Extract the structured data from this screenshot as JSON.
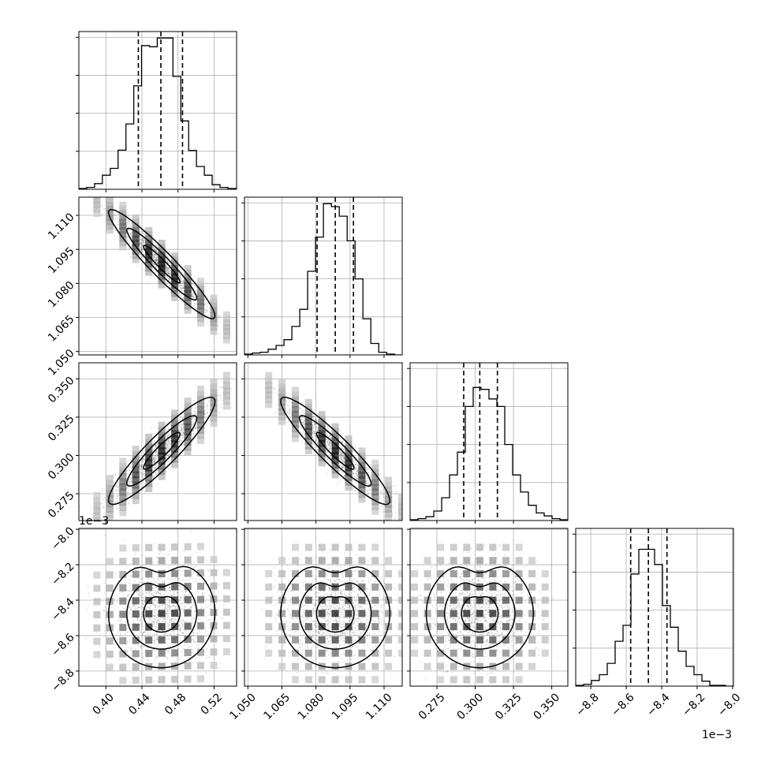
{
  "chart_data": {
    "type": "corner",
    "parameters": [
      {
        "range": [
          0.37,
          0.545
        ],
        "ticks": [
          0.4,
          0.44,
          0.48,
          0.52
        ],
        "tick_labels": [
          "0.40",
          "0.44",
          "0.48",
          "0.52"
        ],
        "quantiles": [
          0.436,
          0.461,
          0.485
        ],
        "hist_edges_start": 0.37,
        "hist_bin": 0.0087,
        "hist_counts": [
          2,
          5,
          15,
          37,
          55,
          103,
          172,
          272,
          378,
          375,
          398,
          398,
          297,
          180,
          102,
          60,
          37,
          12,
          5,
          2
        ]
      },
      {
        "range": [
          1.0485,
          1.118
        ],
        "ticks": [
          1.05,
          1.065,
          1.08,
          1.095,
          1.11
        ],
        "tick_labels": [
          "1.050",
          "1.065",
          "1.080",
          "1.095",
          "1.110"
        ],
        "quantiles": [
          1.0805,
          1.0885,
          1.0965
        ],
        "hist_edges_start": 1.0485,
        "hist_bin": 0.00348,
        "hist_counts": [
          2,
          5,
          7,
          15,
          25,
          40,
          75,
          120,
          220,
          310,
          398,
          390,
          365,
          300,
          200,
          95,
          30,
          7,
          2,
          0
        ]
      },
      {
        "range": [
          0.2575,
          0.3605
        ],
        "ticks": [
          0.275,
          0.3,
          0.325,
          0.35
        ],
        "tick_labels": [
          "0.275",
          "0.300",
          "0.325",
          "0.350"
        ],
        "quantiles": [
          0.2925,
          0.303,
          0.3145
        ],
        "hist_edges_start": 0.2575,
        "hist_bin": 0.00515,
        "hist_counts": [
          2,
          5,
          10,
          25,
          60,
          120,
          180,
          300,
          350,
          345,
          320,
          300,
          200,
          120,
          75,
          40,
          20,
          12,
          5,
          2
        ]
      },
      {
        "range": [
          -8.885,
          -7.995
        ],
        "ticks": [
          -8.8,
          -8.6,
          -8.4,
          -8.2,
          -8.0
        ],
        "tick_labels": [
          "−8.8",
          "−8.6",
          "−8.4",
          "−8.2",
          "−8.0"
        ],
        "quantiles": [
          -8.575,
          -8.475,
          -8.37
        ],
        "hist_edges_start": -8.885,
        "hist_bin": 0.0445,
        "hist_counts": [
          2,
          5,
          15,
          30,
          60,
          118,
          160,
          295,
          360,
          360,
          320,
          212,
          155,
          92,
          52,
          30,
          13,
          2,
          2,
          0
        ]
      }
    ],
    "diag_ylim": [
      0,
      415
    ],
    "offset_texts": {
      "row3_y": "1e−3",
      "col3_x": "1e−3"
    },
    "pairs": [
      {
        "row": 1,
        "col": 0,
        "mean": [
          0.462,
          1.0885
        ],
        "sd": [
          0.027,
          0.011
        ],
        "rho": -0.95
      },
      {
        "row": 2,
        "col": 0,
        "mean": [
          0.462,
          0.303
        ],
        "sd": [
          0.027,
          0.016
        ],
        "rho": 0.92
      },
      {
        "row": 2,
        "col": 1,
        "mean": [
          1.0885,
          0.303
        ],
        "sd": [
          0.011,
          0.016
        ],
        "rho": -0.93
      },
      {
        "row": 3,
        "col": 0,
        "mean": [
          0.462,
          -8.475
        ],
        "sd": [
          0.027,
          0.14
        ],
        "rho": 0.02,
        "heart": true
      },
      {
        "row": 3,
        "col": 1,
        "mean": [
          1.0885,
          -8.475
        ],
        "sd": [
          0.011,
          0.14
        ],
        "rho": 0.0,
        "heart": true
      },
      {
        "row": 3,
        "col": 2,
        "mean": [
          0.303,
          -8.475
        ],
        "sd": [
          0.016,
          0.14
        ],
        "rho": 0.0,
        "heart": true
      }
    ]
  }
}
